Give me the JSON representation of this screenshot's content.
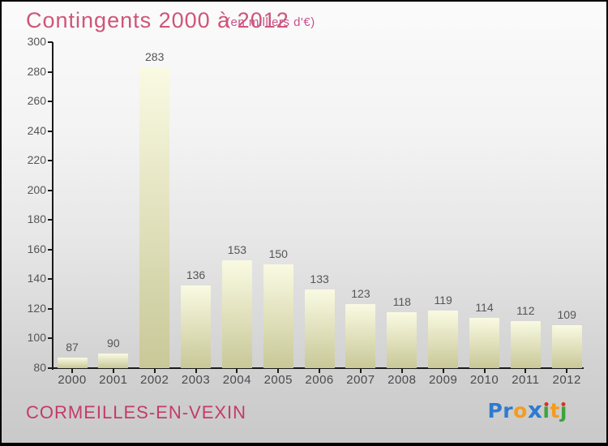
{
  "header": {
    "title": "Contingents 2000 à 2012",
    "subtitle": "(en milliers d'€)"
  },
  "footer": {
    "location": "CORMEILLES-EN-VEXIN",
    "logo_text": "Proxiti",
    "logo_letters": [
      {
        "ch": "P",
        "color": "#2e7bd0"
      },
      {
        "ch": "r",
        "color": "#2e7bd0"
      },
      {
        "ch": "o",
        "color": "#f59b1e"
      },
      {
        "ch": "x",
        "color": "#2e7bd0",
        "big": true
      },
      {
        "ch": "ı",
        "color": "#3fa33c",
        "dot": "#e03020"
      },
      {
        "ch": "t",
        "color": "#f59b1e"
      },
      {
        "ch": "ȷ",
        "color": "#3fa33c",
        "dot": "#e03020"
      }
    ]
  },
  "colors": {
    "title": "#cf5578",
    "subtitle": "#c9518b",
    "location": "#c43a6b",
    "axis": "#1a1a1a",
    "tick_label": "#555555",
    "value_label": "#555555",
    "year_label": "#4a4a4a",
    "bar_top": "#fafae3",
    "bar_bottom": "#c8c898",
    "background_top": "#fbfbfb",
    "background_bottom": "#c9c9c9"
  },
  "chart_data": {
    "type": "bar",
    "title": "Contingents 2000 à 2012",
    "subtitle": "(en milliers d'€)",
    "categories": [
      "2000",
      "2001",
      "2002",
      "2003",
      "2004",
      "2005",
      "2006",
      "2007",
      "2008",
      "2009",
      "2010",
      "2011",
      "2012"
    ],
    "values": [
      87,
      90,
      283,
      136,
      153,
      150,
      133,
      123,
      118,
      119,
      114,
      112,
      109
    ],
    "xlabel": "",
    "ylabel": "",
    "ylim": [
      80,
      300
    ],
    "yticks": [
      80,
      100,
      120,
      140,
      160,
      180,
      200,
      220,
      240,
      260,
      280,
      300
    ],
    "grid": false,
    "legend": null,
    "value_labels": true,
    "bar_gradient": [
      "#fafae3",
      "#c8c898"
    ]
  }
}
